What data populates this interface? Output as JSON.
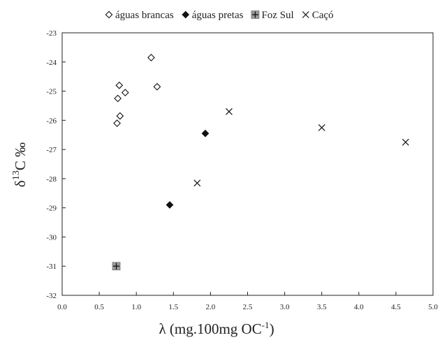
{
  "chart_data": {
    "type": "scatter",
    "xlabel": "λ (mg.100mg OC-1)",
    "ylabel": "δ13C ‰",
    "xlim": [
      0.0,
      5.0
    ],
    "ylim": [
      -32,
      -23
    ],
    "xticks": [
      "0.0",
      "0.5",
      "1.0",
      "1.5",
      "2.0",
      "2.5",
      "3.0",
      "3.5",
      "4.0",
      "4.5",
      "5.0"
    ],
    "yticks": [
      "-23",
      "-24",
      "-25",
      "-26",
      "-27",
      "-28",
      "-29",
      "-30",
      "-31",
      "-32"
    ],
    "grid": false,
    "legend_position": "top",
    "series": [
      {
        "name": "águas brancas",
        "marker": "diamond-open",
        "points": [
          {
            "x": 1.2,
            "y": -23.85
          },
          {
            "x": 1.28,
            "y": -24.85
          },
          {
            "x": 0.77,
            "y": -24.8
          },
          {
            "x": 0.85,
            "y": -25.05
          },
          {
            "x": 0.75,
            "y": -25.25
          },
          {
            "x": 0.78,
            "y": -25.85
          },
          {
            "x": 0.74,
            "y": -26.1
          }
        ]
      },
      {
        "name": "águas pretas",
        "marker": "diamond-filled",
        "points": [
          {
            "x": 1.93,
            "y": -26.45
          },
          {
            "x": 1.45,
            "y": -28.9
          }
        ]
      },
      {
        "name": "Foz Sul",
        "marker": "square-plus",
        "points": [
          {
            "x": 0.73,
            "y": -31.0
          }
        ]
      },
      {
        "name": "Caçó",
        "marker": "x",
        "points": [
          {
            "x": 2.25,
            "y": -25.7
          },
          {
            "x": 3.5,
            "y": -26.25
          },
          {
            "x": 4.63,
            "y": -26.75
          },
          {
            "x": 1.82,
            "y": -28.15
          }
        ]
      }
    ]
  }
}
